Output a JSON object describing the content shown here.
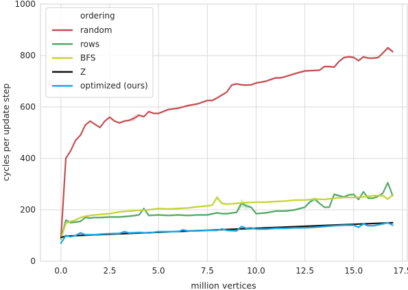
{
  "chart_data": {
    "type": "line",
    "title": "",
    "xlabel": "million vertices",
    "ylabel": "cycles per update step",
    "xlim": [
      -1.05,
      17.75
    ],
    "ylim": [
      0,
      1000
    ],
    "xticks": [
      0.0,
      2.5,
      5.0,
      7.5,
      10.0,
      12.5,
      15.0,
      17.5
    ],
    "xtick_labels": [
      "0.0",
      "2.5",
      "5.0",
      "7.5",
      "10.0",
      "12.5",
      "15.0",
      "17.5"
    ],
    "yticks": [
      0,
      200,
      400,
      600,
      800,
      1000
    ],
    "ytick_labels": [
      "0",
      "200",
      "400",
      "600",
      "800",
      "1000"
    ],
    "grid": true,
    "legend": {
      "title": "ordering",
      "placement": "top-left"
    },
    "series": [
      {
        "name": "random",
        "color": "#c44e52",
        "x": [
          0.0,
          0.25,
          0.5,
          0.75,
          1.0,
          1.25,
          1.5,
          1.75,
          2.0,
          2.25,
          2.5,
          2.75,
          3.0,
          3.25,
          3.5,
          3.75,
          4.0,
          4.25,
          4.5,
          4.75,
          5.0,
          5.5,
          6.0,
          6.5,
          7.0,
          7.5,
          7.75,
          8.0,
          8.5,
          8.75,
          9.0,
          9.25,
          9.5,
          9.75,
          10.0,
          10.5,
          11.0,
          11.25,
          11.5,
          12.0,
          12.5,
          12.75,
          13.0,
          13.25,
          13.5,
          13.75,
          14.0,
          14.25,
          14.5,
          14.75,
          15.0,
          15.25,
          15.5,
          15.75,
          16.0,
          16.25,
          16.5,
          16.75,
          17.0
        ],
        "y": [
          90,
          400,
          430,
          470,
          490,
          530,
          545,
          532,
          520,
          545,
          560,
          545,
          538,
          545,
          548,
          556,
          568,
          562,
          582,
          575,
          575,
          590,
          595,
          605,
          612,
          625,
          625,
          635,
          658,
          685,
          690,
          686,
          685,
          686,
          693,
          700,
          713,
          713,
          718,
          730,
          740,
          741,
          742,
          743,
          757,
          757,
          755,
          777,
          792,
          795,
          793,
          780,
          795,
          790,
          790,
          792,
          810,
          830,
          815
        ],
        "band": [
          4,
          4,
          4,
          4,
          4,
          4,
          4,
          4,
          4,
          4,
          4,
          4,
          4,
          4,
          4,
          12,
          6,
          4,
          4,
          4,
          4,
          4,
          4,
          4,
          4,
          4,
          4,
          4,
          4,
          4,
          4,
          4,
          4,
          4,
          4,
          4,
          4,
          4,
          4,
          4,
          4,
          4,
          4,
          4,
          4,
          4,
          4,
          4,
          4,
          4,
          4,
          4,
          4,
          4,
          4,
          4,
          4,
          6,
          6
        ]
      },
      {
        "name": "rows",
        "color": "#55a868",
        "x": [
          0.0,
          0.25,
          0.5,
          0.75,
          1.0,
          1.25,
          1.5,
          1.75,
          2.0,
          2.5,
          3.0,
          3.5,
          4.0,
          4.25,
          4.5,
          5.0,
          5.5,
          6.0,
          6.5,
          7.0,
          7.5,
          8.0,
          8.25,
          8.5,
          9.0,
          9.25,
          9.5,
          9.75,
          10.0,
          10.5,
          11.0,
          11.5,
          12.0,
          12.25,
          12.5,
          12.75,
          13.0,
          13.25,
          13.5,
          13.75,
          14.0,
          14.25,
          14.5,
          14.75,
          15.0,
          15.25,
          15.5,
          15.75,
          16.0,
          16.25,
          16.5,
          16.75,
          17.0
        ],
        "y": [
          85,
          160,
          150,
          152,
          155,
          170,
          168,
          170,
          170,
          172,
          172,
          175,
          180,
          205,
          178,
          180,
          178,
          180,
          178,
          180,
          180,
          188,
          185,
          185,
          190,
          225,
          215,
          210,
          185,
          188,
          195,
          195,
          200,
          205,
          210,
          230,
          242,
          225,
          210,
          210,
          260,
          255,
          250,
          258,
          260,
          240,
          270,
          245,
          245,
          252,
          265,
          305,
          255
        ],
        "band": [
          4,
          4,
          4,
          4,
          4,
          4,
          4,
          4,
          4,
          4,
          4,
          4,
          4,
          6,
          4,
          4,
          4,
          4,
          4,
          4,
          4,
          4,
          4,
          4,
          4,
          18,
          12,
          4,
          4,
          4,
          4,
          4,
          4,
          4,
          4,
          8,
          8,
          4,
          4,
          4,
          6,
          4,
          4,
          4,
          4,
          4,
          4,
          4,
          4,
          4,
          4,
          8,
          6
        ]
      },
      {
        "name": "BFS",
        "color": "#c4d438",
        "x": [
          0.0,
          0.25,
          0.5,
          0.75,
          1.0,
          1.25,
          1.5,
          2.0,
          2.5,
          3.0,
          3.5,
          4.0,
          4.5,
          5.0,
          5.5,
          6.0,
          6.5,
          7.0,
          7.5,
          7.75,
          8.0,
          8.25,
          8.5,
          9.0,
          9.5,
          10.0,
          10.5,
          11.0,
          11.5,
          12.0,
          12.5,
          13.0,
          13.5,
          14.0,
          14.5,
          15.0,
          15.5,
          16.0,
          16.5,
          16.75,
          17.0
        ],
        "y": [
          85,
          148,
          155,
          160,
          170,
          175,
          178,
          182,
          185,
          192,
          195,
          198,
          200,
          205,
          203,
          205,
          207,
          212,
          215,
          218,
          248,
          225,
          222,
          225,
          228,
          230,
          230,
          232,
          234,
          238,
          238,
          242,
          240,
          245,
          248,
          248,
          250,
          255,
          255,
          242,
          258
        ],
        "band": [
          4,
          4,
          4,
          4,
          4,
          4,
          4,
          4,
          4,
          4,
          4,
          4,
          4,
          4,
          4,
          4,
          4,
          4,
          4,
          4,
          12,
          8,
          4,
          4,
          4,
          4,
          4,
          4,
          4,
          4,
          4,
          4,
          4,
          4,
          4,
          4,
          4,
          4,
          6,
          6,
          6
        ]
      },
      {
        "name": "Z",
        "color": "#111111",
        "x": [
          0.0,
          0.25,
          17.0
        ],
        "y": [
          92,
          98,
          150
        ],
        "band": [
          0,
          0,
          0
        ]
      },
      {
        "name": "optimized (ours)",
        "color": "#1ca7e0",
        "x": [
          0.0,
          0.25,
          0.5,
          0.75,
          1.0,
          1.25,
          1.5,
          1.75,
          2.0,
          2.5,
          3.0,
          3.25,
          3.5,
          4.0,
          4.5,
          5.0,
          5.5,
          6.0,
          6.25,
          6.5,
          7.0,
          7.5,
          8.0,
          8.25,
          8.5,
          9.0,
          9.25,
          9.5,
          9.75,
          10.0,
          10.5,
          11.0,
          11.5,
          12.0,
          12.5,
          13.0,
          13.5,
          14.0,
          14.5,
          15.0,
          15.25,
          15.5,
          15.75,
          16.0,
          16.5,
          16.75,
          17.0
        ],
        "y": [
          70,
          100,
          95,
          100,
          110,
          103,
          103,
          103,
          105,
          107,
          108,
          115,
          110,
          112,
          110,
          115,
          115,
          115,
          122,
          118,
          118,
          120,
          120,
          125,
          120,
          118,
          135,
          128,
          130,
          125,
          125,
          128,
          128,
          130,
          130,
          132,
          135,
          138,
          140,
          140,
          132,
          145,
          138,
          138,
          145,
          150,
          140
        ],
        "band": [
          4,
          4,
          4,
          4,
          6,
          4,
          4,
          4,
          4,
          4,
          4,
          4,
          4,
          4,
          4,
          4,
          4,
          4,
          4,
          4,
          4,
          4,
          4,
          4,
          4,
          4,
          4,
          4,
          4,
          4,
          4,
          4,
          4,
          4,
          4,
          4,
          4,
          4,
          4,
          4,
          4,
          4,
          4,
          4,
          4,
          4,
          4
        ]
      }
    ]
  }
}
